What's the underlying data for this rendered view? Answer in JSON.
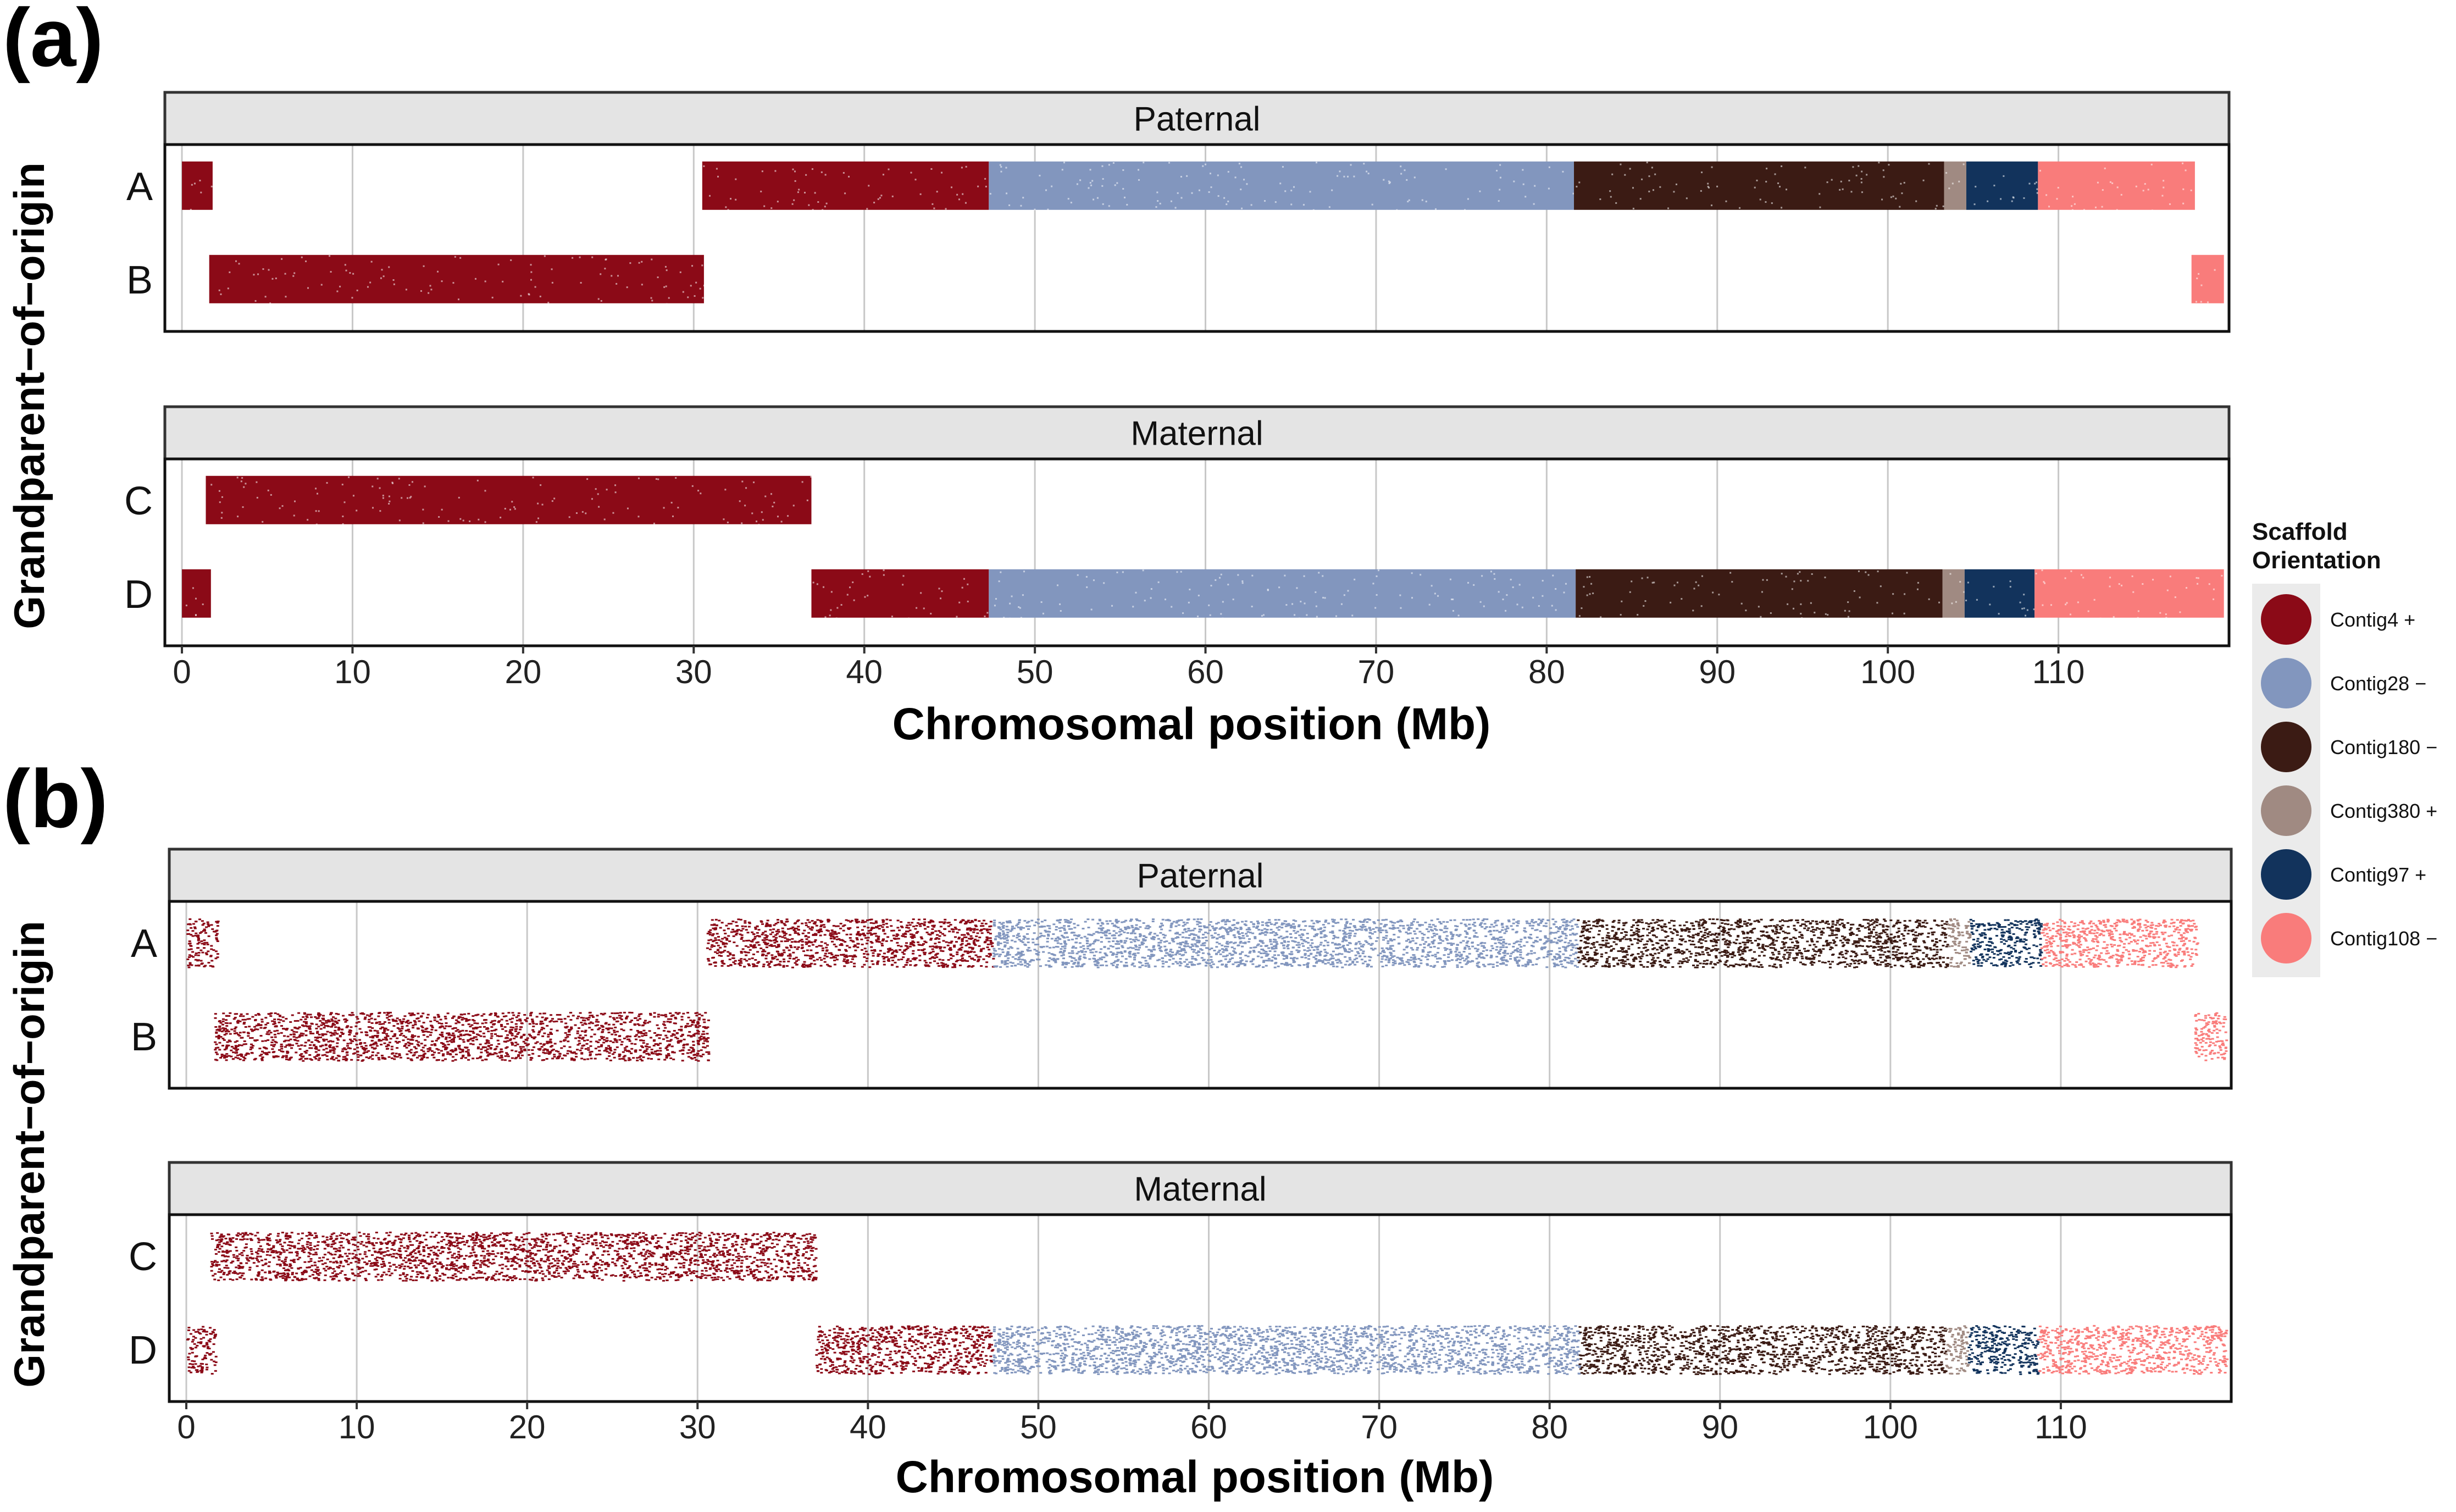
{
  "figure": {
    "colors": {
      "contig4": "#8B0A17",
      "contig28": "#8296BE",
      "contig180": "#3B1B14",
      "contig380": "#A08A82",
      "contig97": "#12335C",
      "contig108": "#F97C7B",
      "strip_fill": "#E4E4E4",
      "grid": "#C8C8C8"
    }
  },
  "legend": {
    "title_line1": "Scaffold",
    "title_line2": "Orientation",
    "items": [
      {
        "label": "Contig4 +",
        "color": "#8B0A17"
      },
      {
        "label": "Contig28 −",
        "color": "#8296BE"
      },
      {
        "label": "Contig180 −",
        "color": "#3B1B14"
      },
      {
        "label": "Contig380 +",
        "color": "#A08A82"
      },
      {
        "label": "Contig97 +",
        "color": "#12335C"
      },
      {
        "label": "Contig108 −",
        "color": "#F97C7B"
      }
    ]
  },
  "chart_data": [
    {
      "panel_label": "(a)",
      "type": "scatter",
      "xlabel": "Chromosomal position (Mb)",
      "ylabel": "Grandparent−of−origin",
      "xlim": [
        -1,
        120
      ],
      "x_ticks": [
        0,
        10,
        20,
        30,
        40,
        50,
        60,
        70,
        80,
        90,
        100,
        110
      ],
      "density": "dense",
      "facets": [
        {
          "strip": "Paternal",
          "rows": [
            {
              "label": "A",
              "segments": [
                {
                  "contig": "Contig4 +",
                  "start": 0,
                  "end": 1.8
                },
                {
                  "contig": "Contig4 +",
                  "start": 30.5,
                  "end": 47.3
                },
                {
                  "contig": "Contig28 −",
                  "start": 47.3,
                  "end": 81.6
                },
                {
                  "contig": "Contig180 −",
                  "start": 81.6,
                  "end": 103.3
                },
                {
                  "contig": "Contig380 +",
                  "start": 103.3,
                  "end": 104.6
                },
                {
                  "contig": "Contig97 +",
                  "start": 104.6,
                  "end": 108.8
                },
                {
                  "contig": "Contig108 −",
                  "start": 108.8,
                  "end": 118
                }
              ]
            },
            {
              "label": "B",
              "segments": [
                {
                  "contig": "Contig4 +",
                  "start": 1.6,
                  "end": 30.6
                },
                {
                  "contig": "Contig108 −",
                  "start": 117.8,
                  "end": 119.7
                }
              ]
            }
          ]
        },
        {
          "strip": "Maternal",
          "rows": [
            {
              "label": "C",
              "segments": [
                {
                  "contig": "Contig4 +",
                  "start": 1.4,
                  "end": 36.9
                }
              ]
            },
            {
              "label": "D",
              "segments": [
                {
                  "contig": "Contig4 +",
                  "start": 0,
                  "end": 1.7
                },
                {
                  "contig": "Contig4 +",
                  "start": 36.9,
                  "end": 47.3
                },
                {
                  "contig": "Contig28 −",
                  "start": 47.3,
                  "end": 81.7
                },
                {
                  "contig": "Contig180 −",
                  "start": 81.7,
                  "end": 103.2
                },
                {
                  "contig": "Contig380 +",
                  "start": 103.2,
                  "end": 104.5
                },
                {
                  "contig": "Contig97 +",
                  "start": 104.5,
                  "end": 108.6
                },
                {
                  "contig": "Contig108 −",
                  "start": 108.6,
                  "end": 119.7
                }
              ]
            }
          ]
        }
      ]
    },
    {
      "panel_label": "(b)",
      "type": "scatter",
      "xlabel": "Chromosomal position (Mb)",
      "ylabel": "Grandparent−of−origin",
      "xlim": [
        -1,
        120
      ],
      "x_ticks": [
        0,
        10,
        20,
        30,
        40,
        50,
        60,
        70,
        80,
        90,
        100,
        110
      ],
      "density": "sparse",
      "facets": [
        {
          "strip": "Paternal",
          "rows": [
            {
              "label": "A",
              "segments": [
                {
                  "contig": "Contig4 +",
                  "start": 0,
                  "end": 1.8
                },
                {
                  "contig": "Contig4 +",
                  "start": 30.5,
                  "end": 47.3
                },
                {
                  "contig": "Contig28 −",
                  "start": 47.3,
                  "end": 81.6
                },
                {
                  "contig": "Contig180 −",
                  "start": 81.6,
                  "end": 103.3
                },
                {
                  "contig": "Contig380 +",
                  "start": 103.3,
                  "end": 104.6
                },
                {
                  "contig": "Contig97 +",
                  "start": 104.6,
                  "end": 108.8
                },
                {
                  "contig": "Contig108 −",
                  "start": 108.8,
                  "end": 118
                }
              ]
            },
            {
              "label": "B",
              "segments": [
                {
                  "contig": "Contig4 +",
                  "start": 1.6,
                  "end": 30.6
                },
                {
                  "contig": "Contig108 −",
                  "start": 117.8,
                  "end": 119.7
                }
              ]
            }
          ]
        },
        {
          "strip": "Maternal",
          "rows": [
            {
              "label": "C",
              "segments": [
                {
                  "contig": "Contig4 +",
                  "start": 1.4,
                  "end": 36.9
                }
              ]
            },
            {
              "label": "D",
              "segments": [
                {
                  "contig": "Contig4 +",
                  "start": 0,
                  "end": 1.7
                },
                {
                  "contig": "Contig4 +",
                  "start": 36.9,
                  "end": 47.3
                },
                {
                  "contig": "Contig28 −",
                  "start": 47.3,
                  "end": 81.7
                },
                {
                  "contig": "Contig180 −",
                  "start": 81.7,
                  "end": 103.2
                },
                {
                  "contig": "Contig380 +",
                  "start": 103.2,
                  "end": 104.5
                },
                {
                  "contig": "Contig97 +",
                  "start": 104.5,
                  "end": 108.6
                },
                {
                  "contig": "Contig108 −",
                  "start": 108.6,
                  "end": 119.7
                }
              ]
            }
          ]
        }
      ]
    }
  ]
}
